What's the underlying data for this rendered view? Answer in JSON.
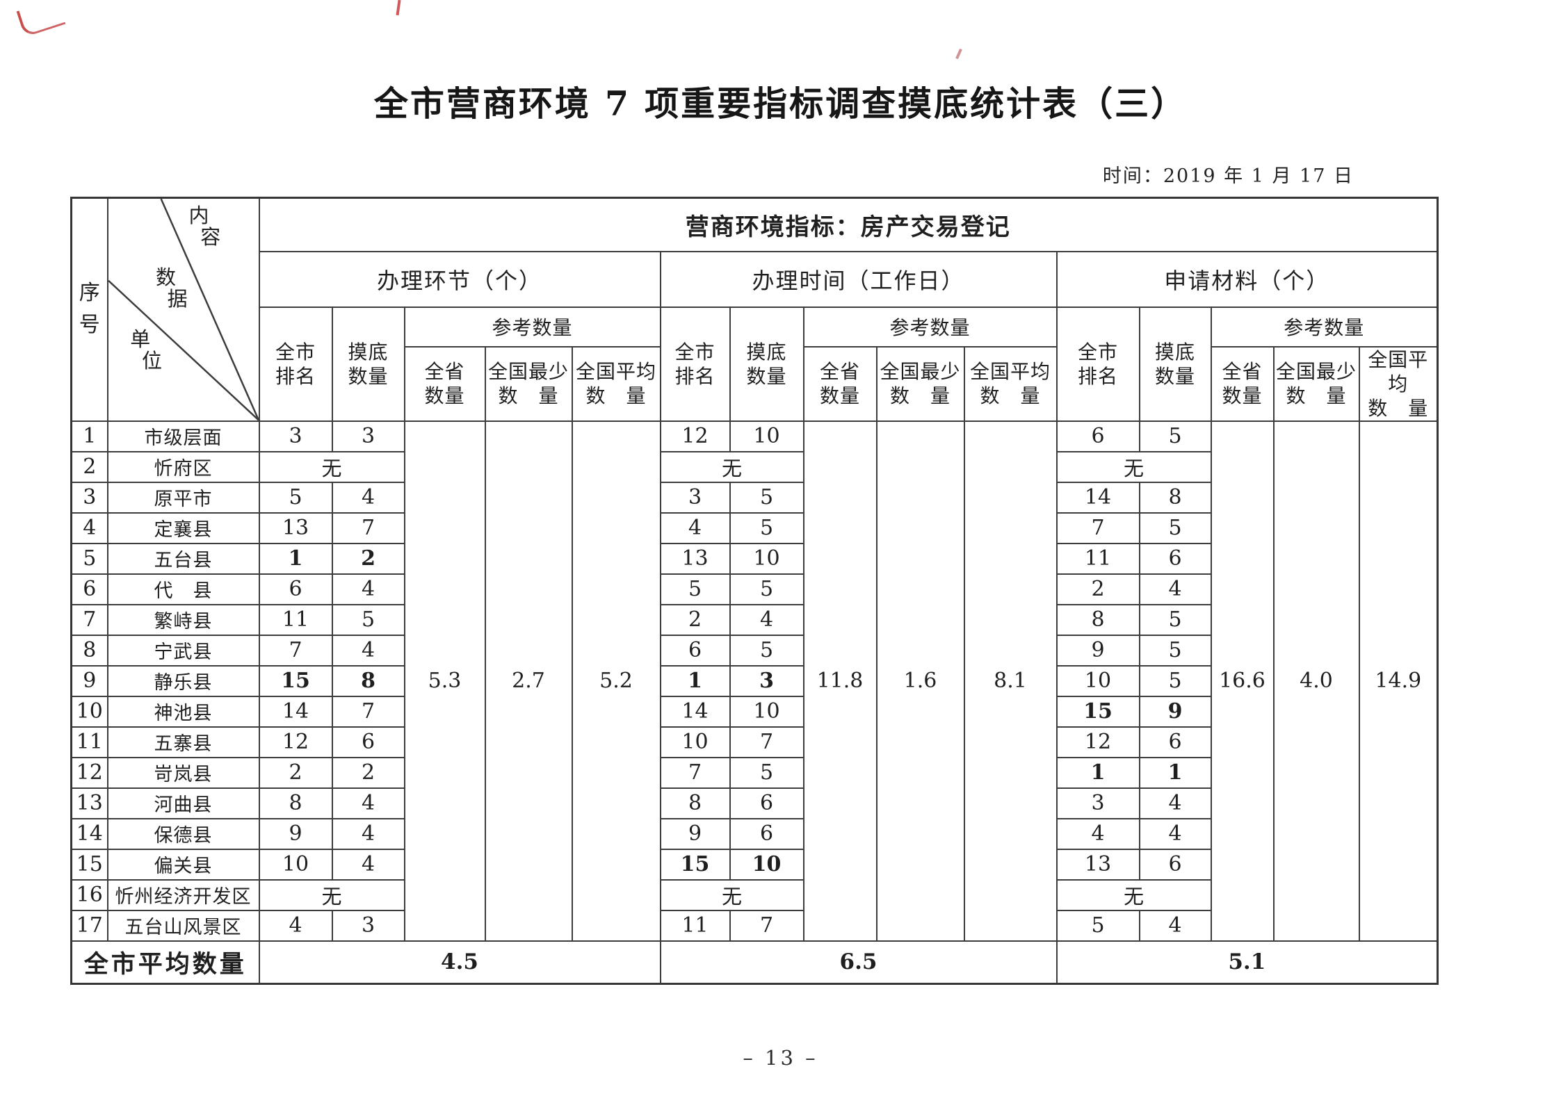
{
  "page": {
    "title": "全市营商环境 7 项重要指标调查摸底统计表（三）",
    "date_label": "时间：2019 年 1 月 17 日",
    "page_number": "– 13 –"
  },
  "colors": {
    "ink": "#1f1f1f",
    "grid_line": "#3c3c3c",
    "artifact_red": "#c03030"
  },
  "table": {
    "indicator_header": "营商环境指标：房产交易登记",
    "corner": {
      "serial": "序号",
      "content": "内容",
      "data": "数据",
      "unit": "单位"
    },
    "sub_headers": {
      "city_rank": "全市\n排名",
      "survey_count": "摸底\n数量",
      "reference": "参考数量",
      "province": "全省\n数量",
      "national_min": "全国最少\n数　量",
      "national_avg": "全国平均\n数　量"
    },
    "none_text": "无",
    "footer_label": "全市平均数量",
    "groups": [
      {
        "title": "办理环节（个）",
        "ref": {
          "province": "5.3",
          "national_min": "2.7",
          "national_avg": "5.2"
        },
        "average": "4.5"
      },
      {
        "title": "办理时间（工作日）",
        "ref": {
          "province": "11.8",
          "national_min": "1.6",
          "national_avg": "8.1"
        },
        "average": "6.5"
      },
      {
        "title": "申请材料（个）",
        "ref": {
          "province": "16.6",
          "national_min": "4.0",
          "national_avg": "14.9"
        },
        "average": "5.1"
      }
    ],
    "rows": [
      {
        "no": "1",
        "unit": "市级层面",
        "g1": [
          "3",
          "3"
        ],
        "g2": [
          "12",
          "10"
        ],
        "g3": [
          "6",
          "5"
        ]
      },
      {
        "no": "2",
        "unit": "忻府区",
        "g1": "none",
        "g2": "none",
        "g3": "none"
      },
      {
        "no": "3",
        "unit": "原平市",
        "g1": [
          "5",
          "4"
        ],
        "g2": [
          "3",
          "5"
        ],
        "g3": [
          "14",
          "8"
        ]
      },
      {
        "no": "4",
        "unit": "定襄县",
        "g1": [
          "13",
          "7"
        ],
        "g2": [
          "4",
          "5"
        ],
        "g3": [
          "7",
          "5"
        ]
      },
      {
        "no": "5",
        "unit": "五台县",
        "g1": [
          "1",
          "2"
        ],
        "g1_bold": true,
        "g2": [
          "13",
          "10"
        ],
        "g3": [
          "11",
          "6"
        ]
      },
      {
        "no": "6",
        "unit": "代　县",
        "g1": [
          "6",
          "4"
        ],
        "g2": [
          "5",
          "5"
        ],
        "g3": [
          "2",
          "4"
        ]
      },
      {
        "no": "7",
        "unit": "繁峙县",
        "g1": [
          "11",
          "5"
        ],
        "g2": [
          "2",
          "4"
        ],
        "g3": [
          "8",
          "5"
        ]
      },
      {
        "no": "8",
        "unit": "宁武县",
        "g1": [
          "7",
          "4"
        ],
        "g2": [
          "6",
          "5"
        ],
        "g3": [
          "9",
          "5"
        ]
      },
      {
        "no": "9",
        "unit": "静乐县",
        "g1": [
          "15",
          "8"
        ],
        "g1_bold": true,
        "g2": [
          "1",
          "3"
        ],
        "g2_bold": true,
        "g3": [
          "10",
          "5"
        ]
      },
      {
        "no": "10",
        "unit": "神池县",
        "g1": [
          "14",
          "7"
        ],
        "g2": [
          "14",
          "10"
        ],
        "g3": [
          "15",
          "9"
        ],
        "g3_bold": true
      },
      {
        "no": "11",
        "unit": "五寨县",
        "g1": [
          "12",
          "6"
        ],
        "g2": [
          "10",
          "7"
        ],
        "g3": [
          "12",
          "6"
        ]
      },
      {
        "no": "12",
        "unit": "岢岚县",
        "g1": [
          "2",
          "2"
        ],
        "g2": [
          "7",
          "5"
        ],
        "g3": [
          "1",
          "1"
        ],
        "g3_bold": true
      },
      {
        "no": "13",
        "unit": "河曲县",
        "g1": [
          "8",
          "4"
        ],
        "g2": [
          "8",
          "6"
        ],
        "g3": [
          "3",
          "4"
        ]
      },
      {
        "no": "14",
        "unit": "保德县",
        "g1": [
          "9",
          "4"
        ],
        "g2": [
          "9",
          "6"
        ],
        "g3": [
          "4",
          "4"
        ]
      },
      {
        "no": "15",
        "unit": "偏关县",
        "g1": [
          "10",
          "4"
        ],
        "g2": [
          "15",
          "10"
        ],
        "g2_bold": true,
        "g3": [
          "13",
          "6"
        ]
      },
      {
        "no": "16",
        "unit": "忻州经济开发区",
        "g1": "none",
        "g2": "none",
        "g3": "none"
      },
      {
        "no": "17",
        "unit": "五台山风景区",
        "g1": [
          "4",
          "3"
        ],
        "g2": [
          "11",
          "7"
        ],
        "g3": [
          "5",
          "4"
        ]
      }
    ]
  }
}
